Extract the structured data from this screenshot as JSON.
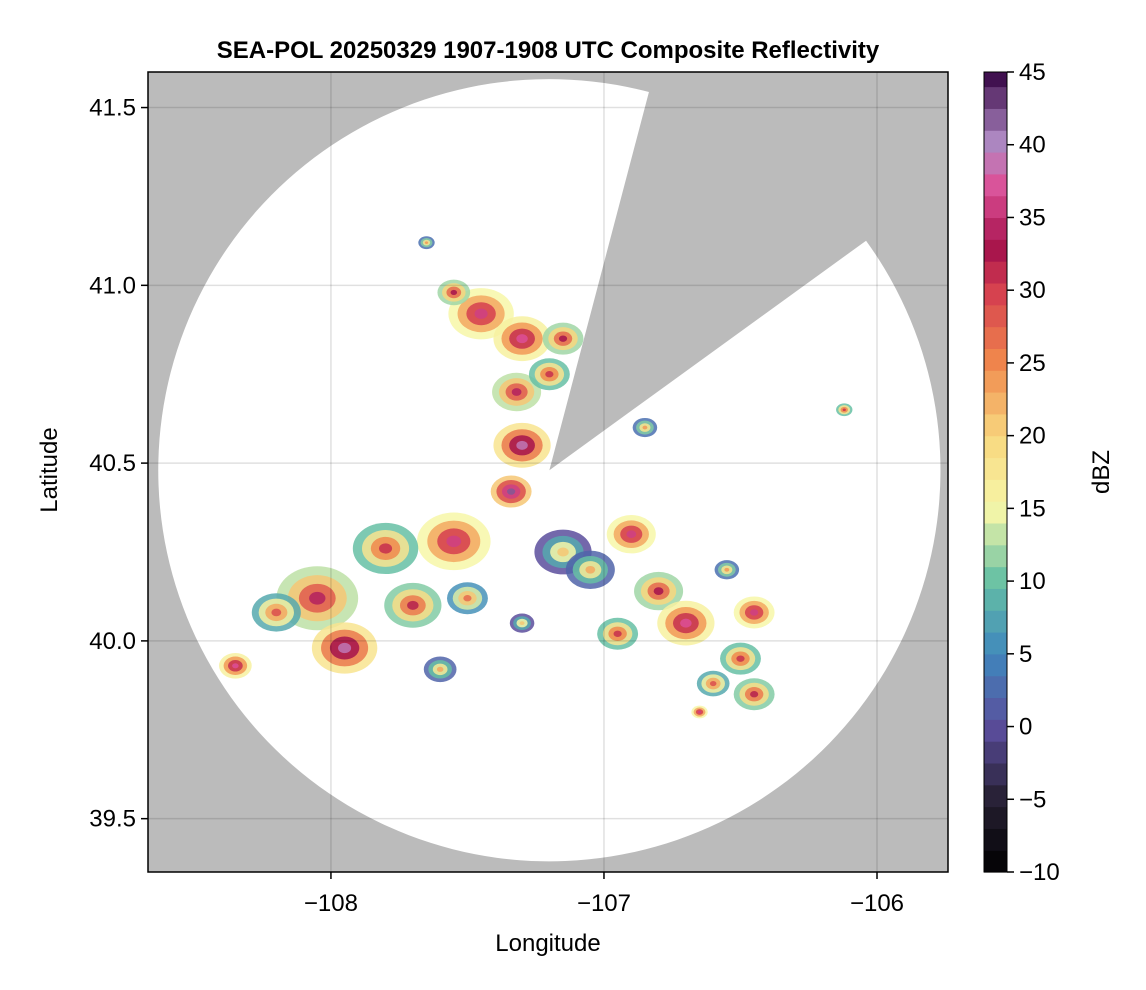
{
  "chart_data": {
    "type": "heatmap",
    "title": "SEA-POL 20250329 1907-1908 UTC Composite Reflectivity",
    "xlabel": "Longitude",
    "ylabel": "Latitude",
    "xlim": [
      -108.67,
      -105.74
    ],
    "ylim": [
      39.35,
      41.6
    ],
    "xticks": [
      -108,
      -107,
      -106
    ],
    "xtick_labels": [
      "−108",
      "−107",
      "−106"
    ],
    "yticks": [
      39.5,
      40.0,
      40.5,
      41.0,
      41.5
    ],
    "ytick_labels": [
      "39.5",
      "40.0",
      "40.5",
      "41.0",
      "41.5"
    ],
    "grid": true,
    "background_color": "#bbbbbb",
    "coverage_color": "#ffffff",
    "radar": {
      "center_lon": -107.2,
      "center_lat": 40.48,
      "range_lat_deg": 1.1,
      "blocked_sector_lon_lat": [
        [
          -106.84,
          41.53
        ],
        [
          -106.05,
          41.12
        ]
      ]
    },
    "colorbar": {
      "label": "dBZ",
      "min": -10,
      "max": 45,
      "ticks": [
        -10,
        -5,
        0,
        5,
        10,
        15,
        20,
        25,
        30,
        35,
        40,
        45
      ],
      "tick_labels": [
        "−10",
        "−5",
        "0",
        "5",
        "10",
        "15",
        "20",
        "25",
        "30",
        "35",
        "40",
        "45"
      ],
      "colormap_stops": [
        {
          "value": -10,
          "color": "#000000"
        },
        {
          "value": -5,
          "color": "#262033"
        },
        {
          "value": 0,
          "color": "#5b4d9c"
        },
        {
          "value": 5,
          "color": "#3f87bd"
        },
        {
          "value": 10,
          "color": "#66c0a4"
        },
        {
          "value": 15,
          "color": "#f7f7a8"
        },
        {
          "value": 20,
          "color": "#f8d77e"
        },
        {
          "value": 25,
          "color": "#f0884c"
        },
        {
          "value": 30,
          "color": "#d53e4f"
        },
        {
          "value": 33,
          "color": "#a5124c"
        },
        {
          "value": 37,
          "color": "#dc4f96"
        },
        {
          "value": 40,
          "color": "#b28cc6"
        },
        {
          "value": 45,
          "color": "#3b0a4a"
        }
      ]
    },
    "echo_cells": [
      {
        "lon": -107.45,
        "lat": 40.92,
        "r": 0.08,
        "dbz": 27
      },
      {
        "lon": -107.3,
        "lat": 40.85,
        "r": 0.07,
        "dbz": 28
      },
      {
        "lon": -107.32,
        "lat": 40.7,
        "r": 0.06,
        "dbz": 25
      },
      {
        "lon": -107.3,
        "lat": 40.55,
        "r": 0.07,
        "dbz": 30
      },
      {
        "lon": -107.34,
        "lat": 40.42,
        "r": 0.05,
        "dbz": 33
      },
      {
        "lon": -107.2,
        "lat": 40.75,
        "r": 0.05,
        "dbz": 22
      },
      {
        "lon": -107.15,
        "lat": 40.85,
        "r": 0.05,
        "dbz": 24
      },
      {
        "lon": -107.55,
        "lat": 40.28,
        "r": 0.09,
        "dbz": 27
      },
      {
        "lon": -107.8,
        "lat": 40.26,
        "r": 0.08,
        "dbz": 22
      },
      {
        "lon": -108.05,
        "lat": 40.12,
        "r": 0.1,
        "dbz": 25
      },
      {
        "lon": -107.95,
        "lat": 39.98,
        "r": 0.08,
        "dbz": 30
      },
      {
        "lon": -108.2,
        "lat": 40.08,
        "r": 0.06,
        "dbz": 20
      },
      {
        "lon": -107.7,
        "lat": 40.1,
        "r": 0.07,
        "dbz": 23
      },
      {
        "lon": -108.35,
        "lat": 39.93,
        "r": 0.04,
        "dbz": 28
      },
      {
        "lon": -107.5,
        "lat": 40.12,
        "r": 0.05,
        "dbz": 18
      },
      {
        "lon": -107.15,
        "lat": 40.25,
        "r": 0.07,
        "dbz": 12
      },
      {
        "lon": -107.05,
        "lat": 40.2,
        "r": 0.06,
        "dbz": 14
      },
      {
        "lon": -106.9,
        "lat": 40.3,
        "r": 0.06,
        "dbz": 27
      },
      {
        "lon": -106.8,
        "lat": 40.14,
        "r": 0.06,
        "dbz": 24
      },
      {
        "lon": -106.7,
        "lat": 40.05,
        "r": 0.07,
        "dbz": 28
      },
      {
        "lon": -106.95,
        "lat": 40.02,
        "r": 0.05,
        "dbz": 22
      },
      {
        "lon": -106.45,
        "lat": 40.08,
        "r": 0.05,
        "dbz": 27
      },
      {
        "lon": -106.5,
        "lat": 39.95,
        "r": 0.05,
        "dbz": 22
      },
      {
        "lon": -106.6,
        "lat": 39.88,
        "r": 0.04,
        "dbz": 20
      },
      {
        "lon": -106.45,
        "lat": 39.85,
        "r": 0.05,
        "dbz": 23
      },
      {
        "lon": -106.65,
        "lat": 39.8,
        "r": 0.02,
        "dbz": 27
      },
      {
        "lon": -106.55,
        "lat": 40.2,
        "r": 0.03,
        "dbz": 15
      },
      {
        "lon": -107.6,
        "lat": 39.92,
        "r": 0.04,
        "dbz": 14
      },
      {
        "lon": -107.3,
        "lat": 40.05,
        "r": 0.03,
        "dbz": 12
      },
      {
        "lon": -106.85,
        "lat": 40.6,
        "r": 0.03,
        "dbz": 15
      },
      {
        "lon": -106.12,
        "lat": 40.65,
        "r": 0.02,
        "dbz": 22
      },
      {
        "lon": -107.55,
        "lat": 40.98,
        "r": 0.04,
        "dbz": 24
      },
      {
        "lon": -107.65,
        "lat": 41.12,
        "r": 0.02,
        "dbz": 15
      }
    ]
  }
}
